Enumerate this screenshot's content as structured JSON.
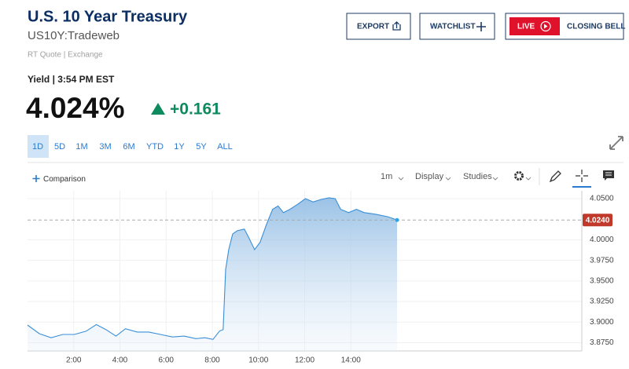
{
  "header": {
    "title": "U.S. 10 Year Treasury",
    "symbol": "US10Y:Tradeweb",
    "source": "RT Quote | Exchange"
  },
  "buttons": {
    "export": "EXPORT",
    "watchlist": "WATCHLIST",
    "live": "LIVE",
    "closing_bell": "CLOSING BELL"
  },
  "quote": {
    "label": "Yield | 3:54 PM EST",
    "last": "4.024%",
    "change": "+0.161"
  },
  "range_buttons": {
    "items": [
      "1D",
      "5D",
      "1M",
      "3M",
      "6M",
      "YTD",
      "1Y",
      "5Y",
      "ALL"
    ],
    "selected_index": 0
  },
  "toolbar": {
    "comparison": "Comparison",
    "interval": "1m",
    "display": "Display",
    "studies": "Studies"
  },
  "chart_data": {
    "type": "area",
    "color": "#3a8fd6",
    "x": [
      0,
      0.51,
      1.02,
      1.53,
      2.03,
      2.54,
      2.98,
      3.39,
      3.83,
      4.24,
      4.75,
      5.25,
      5.76,
      6.27,
      6.78,
      7.29,
      7.69,
      8.03,
      8.31,
      8.47,
      8.58,
      8.71,
      8.88,
      9.08,
      9.39,
      9.59,
      9.83,
      10.07,
      10.34,
      10.61,
      10.85,
      11.08,
      11.36,
      11.69,
      12.03,
      12.37,
      12.71,
      13.05,
      13.32,
      13.56,
      13.9,
      14.24,
      14.58,
      15.08,
      15.59,
      16.0
    ],
    "values": [
      3.8965,
      3.886,
      3.881,
      3.885,
      3.885,
      3.889,
      3.897,
      3.891,
      3.883,
      3.892,
      3.888,
      3.888,
      3.885,
      3.882,
      3.883,
      3.88,
      3.881,
      3.879,
      3.889,
      3.891,
      3.964,
      3.988,
      4.007,
      4.011,
      4.013,
      4.002,
      3.988,
      3.997,
      4.018,
      4.037,
      4.041,
      4.033,
      4.037,
      4.043,
      4.05,
      4.046,
      4.049,
      4.051,
      4.05,
      4.037,
      4.033,
      4.037,
      4.033,
      4.031,
      4.028,
      4.024
    ],
    "xlim": [
      0,
      24
    ],
    "xticks": [
      {
        "value": 2,
        "label": "2:00"
      },
      {
        "value": 4,
        "label": "4:00"
      },
      {
        "value": 6,
        "label": "6:00"
      },
      {
        "value": 8,
        "label": "8:00"
      },
      {
        "value": 10,
        "label": "10:00"
      },
      {
        "value": 12,
        "label": "12:00"
      },
      {
        "value": 14,
        "label": "14:00"
      }
    ],
    "ylim": [
      3.865,
      4.0595
    ],
    "yticks": [
      {
        "value": 3.875,
        "label": "3.8750"
      },
      {
        "value": 3.9,
        "label": "3.9000"
      },
      {
        "value": 3.925,
        "label": "3.9250"
      },
      {
        "value": 3.95,
        "label": "3.9500"
      },
      {
        "value": 3.975,
        "label": "3.9750"
      },
      {
        "value": 4.0,
        "label": "4.0000"
      },
      {
        "value": 4.05,
        "label": "4.0500"
      }
    ],
    "last_value": {
      "value": 4.024,
      "label": "4.0240"
    },
    "grid": true
  }
}
